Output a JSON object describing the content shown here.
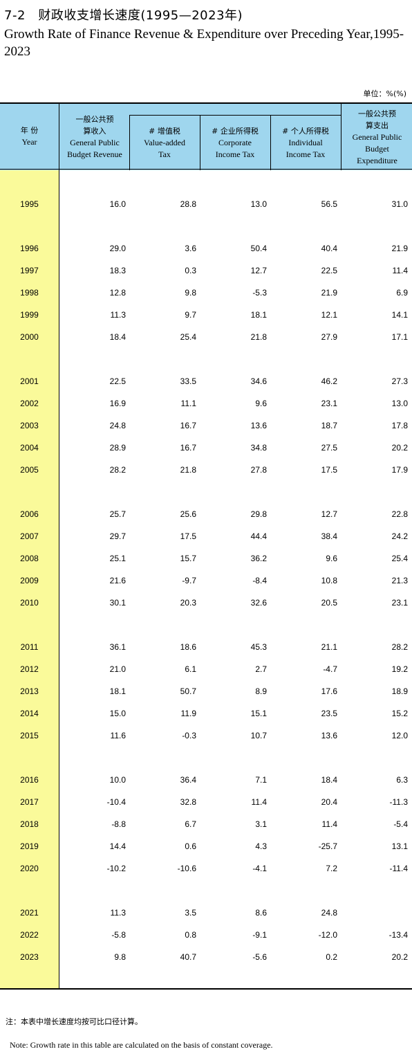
{
  "title_cn": "7-2　财政收支增长速度(1995—2023年)",
  "title_en": "Growth Rate of Finance Revenue & Expenditure over Preceding Year,1995-2023",
  "unit": "单位：%(%)",
  "headers": {
    "year_cn": "年 份",
    "year_en": "Year",
    "revenue_cn": "一般公共预算收入",
    "revenue_en": "General Public Budget Revenue",
    "vat_cn": "# 增值税",
    "vat_en": "Value-added Tax",
    "cit_cn": "# 企业所得税",
    "cit_en": "Corporate Income Tax",
    "pit_cn": "# 个人所得税",
    "pit_en": "Individual Income Tax",
    "exp_cn": "一般公共预算支出",
    "exp_en": "General Public Budget Expenditure"
  },
  "rows": [
    [
      "1995",
      "16.0",
      "28.8",
      "13.0",
      "56.5",
      "31.0"
    ],
    [
      "1996",
      "29.0",
      "3.6",
      "50.4",
      "40.4",
      "21.9"
    ],
    [
      "1997",
      "18.3",
      "0.3",
      "12.7",
      "22.5",
      "11.4"
    ],
    [
      "1998",
      "12.8",
      "9.8",
      "-5.3",
      "21.9",
      "6.9"
    ],
    [
      "1999",
      "11.3",
      "9.7",
      "18.1",
      "12.1",
      "14.1"
    ],
    [
      "2000",
      "18.4",
      "25.4",
      "21.8",
      "27.9",
      "17.1"
    ],
    [
      "2001",
      "22.5",
      "33.5",
      "34.6",
      "46.2",
      "27.3"
    ],
    [
      "2002",
      "16.9",
      "11.1",
      "9.6",
      "23.1",
      "13.0"
    ],
    [
      "2003",
      "24.8",
      "16.7",
      "13.6",
      "18.7",
      "17.8"
    ],
    [
      "2004",
      "28.9",
      "16.7",
      "34.8",
      "27.5",
      "20.2"
    ],
    [
      "2005",
      "28.2",
      "21.8",
      "27.8",
      "17.5",
      "17.9"
    ],
    [
      "2006",
      "25.7",
      "25.6",
      "29.8",
      "12.7",
      "22.8"
    ],
    [
      "2007",
      "29.7",
      "17.5",
      "44.4",
      "38.4",
      "24.2"
    ],
    [
      "2008",
      "25.1",
      "15.7",
      "36.2",
      "9.6",
      "25.4"
    ],
    [
      "2009",
      "21.6",
      "-9.7",
      "-8.4",
      "10.8",
      "21.3"
    ],
    [
      "2010",
      "30.1",
      "20.3",
      "32.6",
      "20.5",
      "23.1"
    ],
    [
      "2011",
      "36.1",
      "18.6",
      "45.3",
      "21.1",
      "28.2"
    ],
    [
      "2012",
      "21.0",
      "6.1",
      "2.7",
      "-4.7",
      "19.2"
    ],
    [
      "2013",
      "18.1",
      "50.7",
      "8.9",
      "17.6",
      "18.9"
    ],
    [
      "2014",
      "15.0",
      "11.9",
      "15.1",
      "23.5",
      "15.2"
    ],
    [
      "2015",
      "11.6",
      "-0.3",
      "10.7",
      "13.6",
      "12.0"
    ],
    [
      "2016",
      "10.0",
      "36.4",
      "7.1",
      "18.4",
      "6.3"
    ],
    [
      "2017",
      "-10.4",
      "32.8",
      "11.4",
      "20.4",
      "-11.3"
    ],
    [
      "2018",
      "-8.8",
      "6.7",
      "3.1",
      "11.4",
      "-5.4"
    ],
    [
      "2019",
      "14.4",
      "0.6",
      "4.3",
      "-25.7",
      "13.1"
    ],
    [
      "2020",
      "-10.2",
      "-10.6",
      "-4.1",
      "7.2",
      "-11.4"
    ],
    [
      "2021",
      "11.3",
      "3.5",
      "8.6",
      "24.8",
      ""
    ],
    [
      "2022",
      "-5.8",
      "0.8",
      "-9.1",
      "-12.0",
      "-13.4"
    ],
    [
      "2023",
      "9.8",
      "40.7",
      "-5.6",
      "0.2",
      "20.2"
    ]
  ],
  "note_cn": "注：本表中增长速度均按可比口径计算。",
  "note_en": "Note: Growth rate in this table are calculated on the basis of constant coverage."
}
